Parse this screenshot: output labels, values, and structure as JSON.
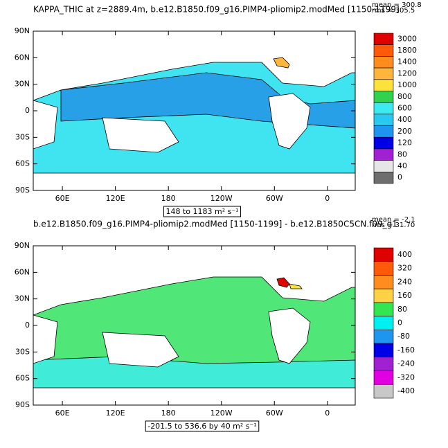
{
  "panels": [
    {
      "title": "KAPPA_THIC at z=2889.4m, b.e12.B1850.f09_g16.PIMP4-pliomip2.modMed [1150-1199]",
      "mean": "mean = 300.8",
      "rms": "rms = 305.5",
      "lat_labels": [
        "90N",
        "60N",
        "30N",
        "0",
        "30S",
        "60S",
        "90S"
      ],
      "lon_labels": [
        "60E",
        "120E",
        "180",
        "120W",
        "60W",
        "0"
      ],
      "colorbar": {
        "labels": [
          3000,
          1800,
          1400,
          1200,
          1000,
          800,
          600,
          400,
          200,
          120,
          80,
          40,
          0
        ],
        "colors": [
          "#e10000",
          "#ff5a0a",
          "#ff8c1e",
          "#ffb43c",
          "#ffe13c",
          "#32d250",
          "#3cebf0",
          "#28c8f0",
          "#1e96f0",
          "#0000e6",
          "#a020d2",
          "#e6e6e6",
          "#6e6e6e"
        ]
      },
      "caption": "148 to 1183 m² s⁻¹"
    },
    {
      "title": "b.e12.B1850.f09_g16.PIMP4-pliomip2.modMed [1150-1199] - b.e12.B1850C5CN.f09_g1",
      "mean": "mean = -2.1",
      "rms": "rms = 31.70",
      "lat_labels": [
        "90N",
        "60N",
        "30N",
        "0",
        "30S",
        "60S",
        "90S"
      ],
      "lon_labels": [
        "60E",
        "120E",
        "180",
        "120W",
        "60W",
        "0"
      ],
      "colorbar": {
        "labels": [
          400,
          320,
          240,
          160,
          80,
          0,
          -80,
          -160,
          -240,
          -320,
          -400
        ],
        "colors": [
          "#e10000",
          "#ff5a0a",
          "#ff8c1e",
          "#ffd246",
          "#32e650",
          "#00f0f0",
          "#1e96f0",
          "#0000e6",
          "#a020d2",
          "#e100e1",
          "#c8c8c8"
        ]
      },
      "caption": "-201.5 to 536.6 by 40 m² s⁻¹"
    }
  ]
}
